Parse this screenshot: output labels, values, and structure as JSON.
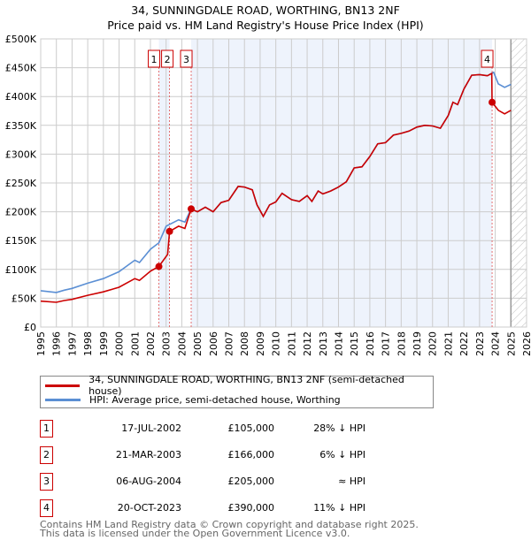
{
  "chart_data": {
    "type": "line",
    "title": "34, SUNNINGDALE ROAD, WORTHING, BN13 2NF",
    "subtitle": "Price paid vs. HM Land Registry's House Price Index (HPI)",
    "xlim": [
      1995,
      2026
    ],
    "ylim": [
      0,
      500000
    ],
    "x_ticks": [
      "1995",
      "1996",
      "1997",
      "1998",
      "1999",
      "2000",
      "2001",
      "2002",
      "2003",
      "2004",
      "2005",
      "2006",
      "2007",
      "2008",
      "2009",
      "2010",
      "2011",
      "2012",
      "2013",
      "2014",
      "2015",
      "2016",
      "2017",
      "2018",
      "2019",
      "2020",
      "2021",
      "2022",
      "2023",
      "2024",
      "2025",
      "2026"
    ],
    "y_ticks": [
      {
        "v": 0,
        "label": "£0"
      },
      {
        "v": 50000,
        "label": "£50K"
      },
      {
        "v": 100000,
        "label": "£100K"
      },
      {
        "v": 150000,
        "label": "£150K"
      },
      {
        "v": 200000,
        "label": "£200K"
      },
      {
        "v": 250000,
        "label": "£250K"
      },
      {
        "v": 300000,
        "label": "£300K"
      },
      {
        "v": 350000,
        "label": "£350K"
      },
      {
        "v": 400000,
        "label": "£400K"
      },
      {
        "v": 450000,
        "label": "£450K"
      },
      {
        "v": 500000,
        "label": "£500K"
      }
    ],
    "grid": true,
    "forecast_hatch_from": 2025,
    "series": [
      {
        "name": "HPI: Average price, semi-detached house, Worthing",
        "color": "#5b8fd4",
        "x": [
          1995,
          1996,
          1996.5,
          1997,
          1998,
          1999,
          2000,
          2001,
          2001.3,
          2002,
          2002.54,
          2003,
          2003.8,
          2004.2,
          2004.6,
          2005,
          2005.5,
          2006,
          2006.5,
          2007,
          2007.6,
          2008,
          2008.5,
          2008.8,
          2009.2,
          2009.6,
          2010,
          2010.4,
          2011,
          2011.5,
          2012,
          2012.3,
          2012.7,
          2013,
          2013.5,
          2014,
          2014.5,
          2015,
          2015.5,
          2016,
          2016.5,
          2017,
          2017.5,
          2018,
          2018.5,
          2019,
          2019.5,
          2020,
          2020.5,
          2021,
          2021.3,
          2021.6,
          2022,
          2022.5,
          2023,
          2023.5,
          2023.9,
          2024.2,
          2024.6,
          2025
        ],
        "y": [
          63000,
          60000,
          64000,
          67000,
          76000,
          84000,
          96000,
          116000,
          112000,
          135000,
          146000,
          175000,
          186000,
          182000,
          205000,
          200000,
          208000,
          200000,
          216000,
          220000,
          244000,
          243000,
          238000,
          212000,
          192000,
          212000,
          217000,
          232000,
          221000,
          218000,
          228000,
          218000,
          236000,
          231000,
          236000,
          243000,
          252000,
          276000,
          278000,
          296000,
          318000,
          320000,
          333000,
          336000,
          340000,
          347000,
          350000,
          349000,
          345000,
          367000,
          390000,
          386000,
          413000,
          437000,
          438000,
          436000,
          442000,
          422000,
          416000,
          421000
        ]
      },
      {
        "name": "34, SUNNINGDALE ROAD, WORTHING, BN13 2NF (semi-detached house)",
        "color": "#cc0000",
        "x": [
          1995,
          1996,
          1996.5,
          1997,
          1998,
          1999,
          2000,
          2001,
          2001.3,
          2002,
          2002.54,
          2003.1,
          2003.22,
          2003.8,
          2004.2,
          2004.6,
          2005,
          2005.5,
          2006,
          2006.5,
          2007,
          2007.6,
          2008,
          2008.5,
          2008.8,
          2009.2,
          2009.6,
          2010,
          2010.4,
          2011,
          2011.5,
          2012,
          2012.3,
          2012.7,
          2013,
          2013.5,
          2014,
          2014.5,
          2015,
          2015.5,
          2016,
          2016.5,
          2017,
          2017.5,
          2018,
          2018.5,
          2019,
          2019.5,
          2020,
          2020.5,
          2021,
          2021.3,
          2021.6,
          2022,
          2022.5,
          2023,
          2023.5,
          2023.78,
          2023.8,
          2024.2,
          2024.6,
          2025
        ],
        "y": [
          45000,
          43000,
          46000,
          48000,
          55000,
          61000,
          69000,
          84000,
          81000,
          97000,
          105000,
          126000,
          166000,
          175000,
          171000,
          205000,
          200000,
          208000,
          200000,
          216000,
          220000,
          244000,
          243000,
          238000,
          212000,
          192000,
          212000,
          217000,
          232000,
          221000,
          218000,
          228000,
          218000,
          236000,
          231000,
          236000,
          243000,
          252000,
          276000,
          278000,
          296000,
          318000,
          320000,
          333000,
          336000,
          340000,
          347000,
          350000,
          349000,
          345000,
          367000,
          390000,
          386000,
          413000,
          437000,
          438000,
          436000,
          440000,
          390000,
          376000,
          370000,
          376000
        ]
      }
    ],
    "sales": [
      {
        "n": "1",
        "x": 2002.54,
        "y": 105000
      },
      {
        "n": "2",
        "x": 2003.22,
        "y": 166000
      },
      {
        "n": "3",
        "x": 2004.6,
        "y": 205000
      },
      {
        "n": "4",
        "x": 2023.8,
        "y": 390000
      }
    ]
  },
  "legend": {
    "property": "34, SUNNINGDALE ROAD, WORTHING, BN13 2NF (semi-detached house)",
    "hpi": "HPI: Average price, semi-detached house, Worthing"
  },
  "table": [
    {
      "n": "1",
      "date": "17-JUL-2002",
      "price": "£105,000",
      "rel": "28% ↓ HPI"
    },
    {
      "n": "2",
      "date": "21-MAR-2003",
      "price": "£166,000",
      "rel": "6% ↓ HPI"
    },
    {
      "n": "3",
      "date": "06-AUG-2004",
      "price": "£205,000",
      "rel": "≈ HPI"
    },
    {
      "n": "4",
      "date": "20-OCT-2023",
      "price": "£390,000",
      "rel": "11% ↓ HPI"
    }
  ],
  "footer": {
    "line1": "Contains HM Land Registry data © Crown copyright and database right 2025.",
    "line2": "This data is licensed under the Open Government Licence v3.0."
  },
  "colors": {
    "property": "#cc0000",
    "hpi": "#5b8fd4",
    "shade": "#eef3fc"
  }
}
